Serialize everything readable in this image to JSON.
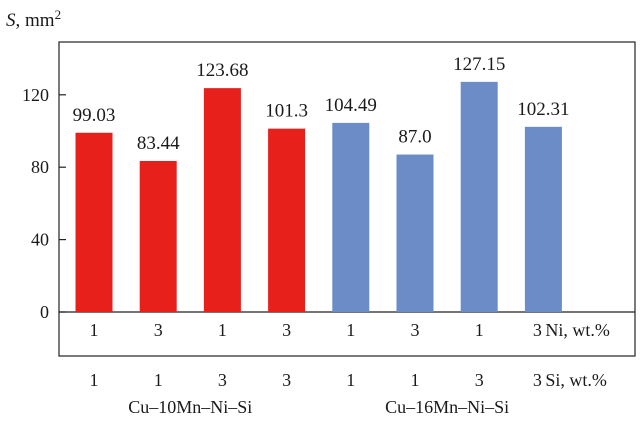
{
  "chart_data": {
    "type": "bar",
    "ylabel": "S",
    "ylabel_unit": ", mm",
    "ylabel_unit_exp": "2",
    "ylim": [
      0,
      150
    ],
    "yticks": [
      0,
      40,
      80,
      120
    ],
    "grid": false,
    "categories": [
      {
        "ni": "1",
        "si": "1",
        "value": 99.03,
        "label": "99.03",
        "group": 0
      },
      {
        "ni": "3",
        "si": "1",
        "value": 83.44,
        "label": "83.44",
        "group": 0
      },
      {
        "ni": "1",
        "si": "3",
        "value": 123.68,
        "label": "123.68",
        "group": 0
      },
      {
        "ni": "3",
        "si": "3",
        "value": 101.3,
        "label": "101.3",
        "group": 0
      },
      {
        "ni": "1",
        "si": "1",
        "value": 104.49,
        "label": "104.49",
        "group": 1
      },
      {
        "ni": "3",
        "si": "1",
        "value": 87.0,
        "label": "87.0",
        "group": 1
      },
      {
        "ni": "1",
        "si": "3",
        "value": 127.15,
        "label": "127.15",
        "group": 1
      },
      {
        "ni": "3",
        "si": "3",
        "value": 102.31,
        "label": "102.31",
        "group": 1
      }
    ],
    "groups": [
      {
        "name": "Cu–10Mn–Ni–Si",
        "color": "#e8201c"
      },
      {
        "name": "Cu–16Mn–Ni–Si",
        "color": "#6b8cc7"
      }
    ],
    "row_labels": {
      "ni": "Ni, wt.%",
      "si": "Si, wt.%"
    }
  }
}
